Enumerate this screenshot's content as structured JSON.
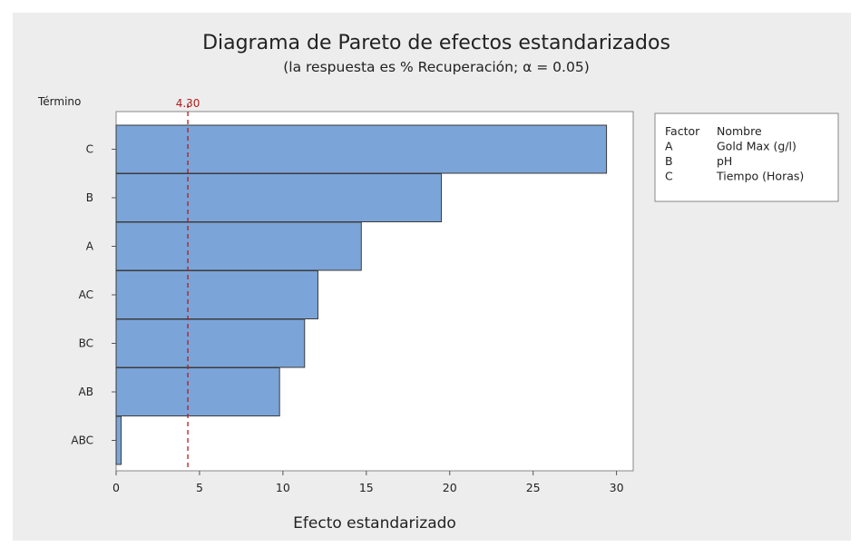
{
  "chart_data": {
    "type": "bar",
    "orientation": "horizontal",
    "title": "Diagrama de Pareto de efectos estandarizados",
    "subtitle": "(la respuesta es % Recuperación; α = 0.05)",
    "xlabel": "Efecto estandarizado",
    "ylabel": "Término",
    "categories": [
      "C",
      "B",
      "A",
      "AC",
      "BC",
      "AB",
      "ABC"
    ],
    "values": [
      29.4,
      19.5,
      14.7,
      12.1,
      11.3,
      9.8,
      0.3
    ],
    "xlim": [
      0,
      31
    ],
    "xticks": [
      0,
      5,
      10,
      15,
      20,
      25,
      30
    ],
    "reference_line": {
      "value": 4.3,
      "label": "4.30",
      "color": "#b01c1c",
      "style": "dashed"
    },
    "bar_color": "#7ba4d8",
    "bar_edge_color": "#3c3c3c",
    "grid": false,
    "legend": {
      "placement": "right",
      "header": [
        "Factor",
        "Nombre"
      ],
      "rows": [
        [
          "A",
          "Gold Max (g/l)"
        ],
        [
          "B",
          "pH"
        ],
        [
          "C",
          "Tiempo (Horas)"
        ]
      ]
    }
  }
}
